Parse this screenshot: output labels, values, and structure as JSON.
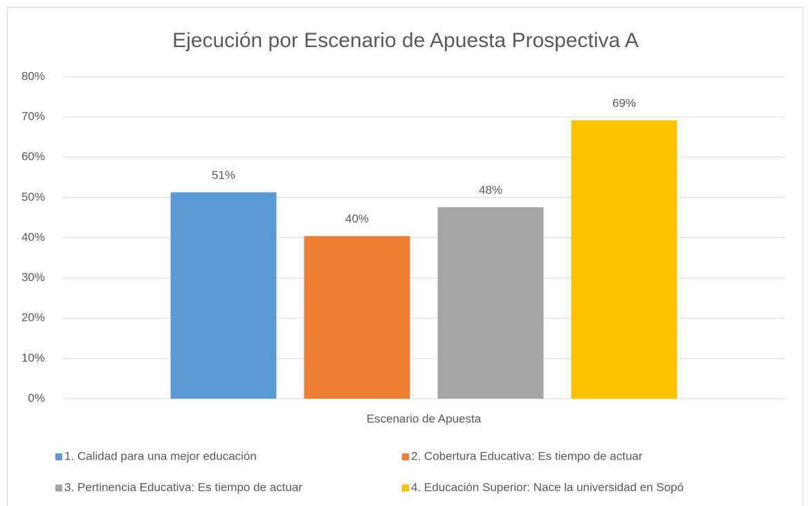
{
  "chart_data": {
    "type": "bar",
    "title": "Ejecución por Escenario de Apuesta Prospectiva A",
    "categories": [
      "Escenario de Apuesta"
    ],
    "series": [
      {
        "name": "1. Calidad para una mejor educación",
        "color": "#5b9bd5",
        "values": [
          51.3
        ],
        "value_labels": [
          "51%"
        ]
      },
      {
        "name": "2. Cobertura Educativa: Es tiempo de actuar",
        "color": "#ed7d31",
        "values": [
          40.4
        ],
        "value_labels": [
          "40%"
        ]
      },
      {
        "name": "3. Pertinencia Educativa: Es tiempo de actuar",
        "color": "#a5a5a5",
        "values": [
          47.6
        ],
        "value_labels": [
          "48%"
        ]
      },
      {
        "name": "4. Educación Superior: Nace la universidad en Sopó",
        "color": "#ffc000",
        "values": [
          69.2
        ],
        "value_labels": [
          "69%"
        ]
      }
    ],
    "ylim": [
      0,
      80
    ],
    "yticks": [
      {
        "value": 0,
        "label": "0%"
      },
      {
        "value": 10,
        "label": "10%"
      },
      {
        "value": 20,
        "label": "20%"
      },
      {
        "value": 30,
        "label": "30%"
      },
      {
        "value": 40,
        "label": "40%"
      },
      {
        "value": 50,
        "label": "50%"
      },
      {
        "value": 60,
        "label": "60%"
      },
      {
        "value": 70,
        "label": "70%"
      },
      {
        "value": 80,
        "label": "80%"
      }
    ],
    "grid": true,
    "legend": "bottom"
  }
}
